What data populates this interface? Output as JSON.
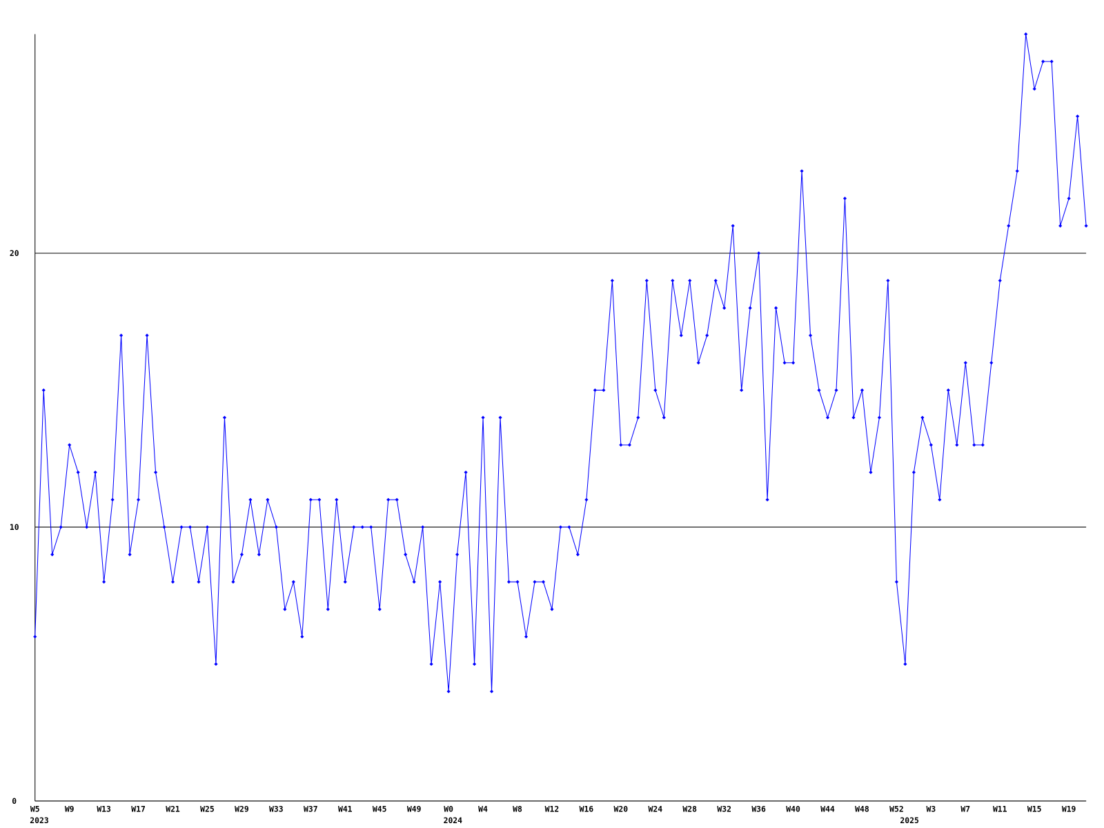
{
  "chart_data": {
    "type": "line",
    "categories": [
      "W5",
      null,
      null,
      null,
      "W9",
      null,
      null,
      null,
      "W13",
      null,
      null,
      null,
      "W17",
      null,
      null,
      null,
      "W21",
      null,
      null,
      null,
      "W25",
      null,
      null,
      null,
      "W29",
      null,
      null,
      null,
      "W33",
      null,
      null,
      null,
      "W37",
      null,
      null,
      null,
      "W41",
      null,
      null,
      null,
      "W45",
      null,
      null,
      null,
      "W49",
      null,
      null,
      null,
      "W0",
      null,
      null,
      null,
      "W4",
      null,
      null,
      null,
      "W8",
      null,
      null,
      null,
      "W12",
      null,
      null,
      null,
      "W16",
      null,
      null,
      null,
      "W20",
      null,
      null,
      null,
      "W24",
      null,
      null,
      null,
      "W28",
      null,
      null,
      null,
      "W32",
      null,
      null,
      null,
      "W36",
      null,
      null,
      null,
      "W40",
      null,
      null,
      null,
      "W44",
      null,
      null,
      null,
      "W48",
      null,
      null,
      null,
      "W52",
      null,
      null,
      null,
      "W3",
      null,
      null,
      null,
      "W7",
      null,
      null,
      null,
      "W11",
      null,
      null,
      null,
      "W15",
      null,
      null,
      null,
      "W19",
      null,
      null
    ],
    "years": [
      "2023",
      null,
      null,
      null,
      null,
      null,
      null,
      null,
      null,
      null,
      null,
      null,
      null,
      null,
      null,
      null,
      null,
      null,
      null,
      null,
      null,
      null,
      null,
      null,
      null,
      null,
      null,
      null,
      null,
      null,
      null,
      null,
      null,
      null,
      null,
      null,
      null,
      null,
      null,
      null,
      null,
      null,
      null,
      null,
      null,
      null,
      null,
      null,
      "2024",
      null,
      null,
      null,
      null,
      null,
      null,
      null,
      null,
      null,
      null,
      null,
      null,
      null,
      null,
      null,
      null,
      null,
      null,
      null,
      null,
      null,
      null,
      null,
      null,
      null,
      null,
      null,
      null,
      null,
      null,
      null,
      null,
      null,
      null,
      null,
      null,
      null,
      null,
      null,
      null,
      null,
      null,
      null,
      null,
      null,
      null,
      null,
      null,
      null,
      null,
      null,
      null,
      "2025",
      null,
      null,
      null,
      null,
      null,
      null,
      null,
      null,
      null,
      null,
      null,
      null,
      null,
      null,
      null,
      null,
      null,
      null,
      null,
      null
    ],
    "series": [
      {
        "color": "#0000ff",
        "values": [
          6,
          15,
          9,
          10,
          13,
          12,
          10,
          12,
          8,
          11,
          17,
          9,
          11,
          17,
          12,
          10,
          8,
          10,
          10,
          8,
          10,
          5,
          14,
          8,
          9,
          11,
          9,
          11,
          10,
          7,
          8,
          6,
          11,
          11,
          7,
          11,
          8,
          10,
          10,
          10,
          7,
          11,
          11,
          9,
          8,
          10,
          5,
          8,
          4,
          9,
          12,
          5,
          14,
          4,
          14,
          8,
          8,
          6,
          8,
          8,
          7,
          10,
          10,
          9,
          11,
          15,
          15,
          19,
          13,
          13,
          14,
          19,
          15,
          14,
          19,
          17,
          19,
          16,
          17,
          19,
          18,
          21,
          15,
          18,
          20,
          11,
          18,
          16,
          16,
          23,
          17,
          15,
          14,
          15,
          22,
          14,
          15,
          12,
          14,
          19,
          8,
          5,
          12,
          14,
          13,
          11,
          15,
          13,
          16,
          13,
          13,
          16,
          19,
          21,
          23,
          28,
          26,
          27,
          27,
          21,
          22,
          25,
          21
        ]
      }
    ],
    "ylim": [
      0,
      28
    ],
    "yticks": [
      0,
      10,
      20
    ],
    "grid": true
  }
}
